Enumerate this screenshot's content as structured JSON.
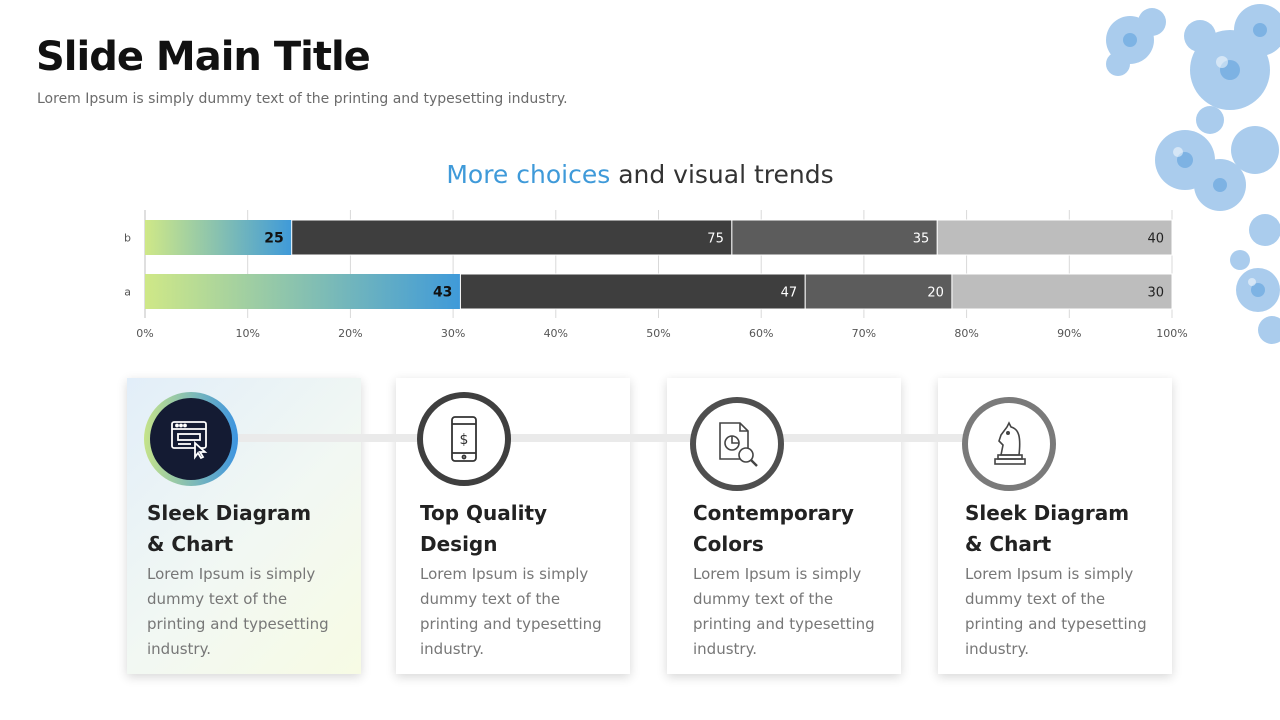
{
  "slide": {
    "title": "Slide Main Title",
    "subtitle": "Lorem Ipsum is simply dummy text of the printing and typesetting industry."
  },
  "chart_heading": {
    "accent": "More choices",
    "rest": "and visual trends"
  },
  "chart_data": {
    "type": "bar",
    "orientation": "horizontal",
    "stacked": "percent",
    "categories": [
      "b",
      "a"
    ],
    "series": [
      {
        "values": [
          25,
          43
        ],
        "color": "#3f9ad9",
        "gradient_start": "#cfe887"
      },
      {
        "values": [
          75,
          47
        ],
        "color": "#3e3e3e"
      },
      {
        "values": [
          35,
          20
        ],
        "color": "#5c5c5c"
      },
      {
        "values": [
          40,
          30
        ],
        "color": "#bdbdbd"
      }
    ],
    "label_colors": [
      "#111111",
      "#ffffff",
      "#ffffff",
      "#222222"
    ],
    "xlim": [
      0,
      100
    ],
    "xticks": [
      "0%",
      "10%",
      "20%",
      "30%",
      "40%",
      "50%",
      "60%",
      "70%",
      "80%",
      "90%",
      "100%"
    ],
    "grid": "vertical",
    "legend": "none"
  },
  "cards": [
    {
      "title_line1": "Sleek Diagram",
      "title_line2": "& Chart",
      "body": "Lorem Ipsum is simply dummy text of the printing and typesetting industry.",
      "icon": "browser-cursor-icon"
    },
    {
      "title_line1": "Top Quality",
      "title_line2": "Design",
      "body": "Lorem Ipsum is simply dummy text of the printing and typesetting industry.",
      "icon": "smartphone-dollar-icon"
    },
    {
      "title_line1": "Contemporary",
      "title_line2": "Colors",
      "body": "Lorem Ipsum is simply dummy text of the printing and typesetting industry.",
      "icon": "report-magnifier-icon"
    },
    {
      "title_line1": "Sleek Diagram",
      "title_line2": "& Chart",
      "body": "Lorem Ipsum is simply dummy text of the printing and typesetting industry.",
      "icon": "chess-knight-icon"
    }
  ]
}
